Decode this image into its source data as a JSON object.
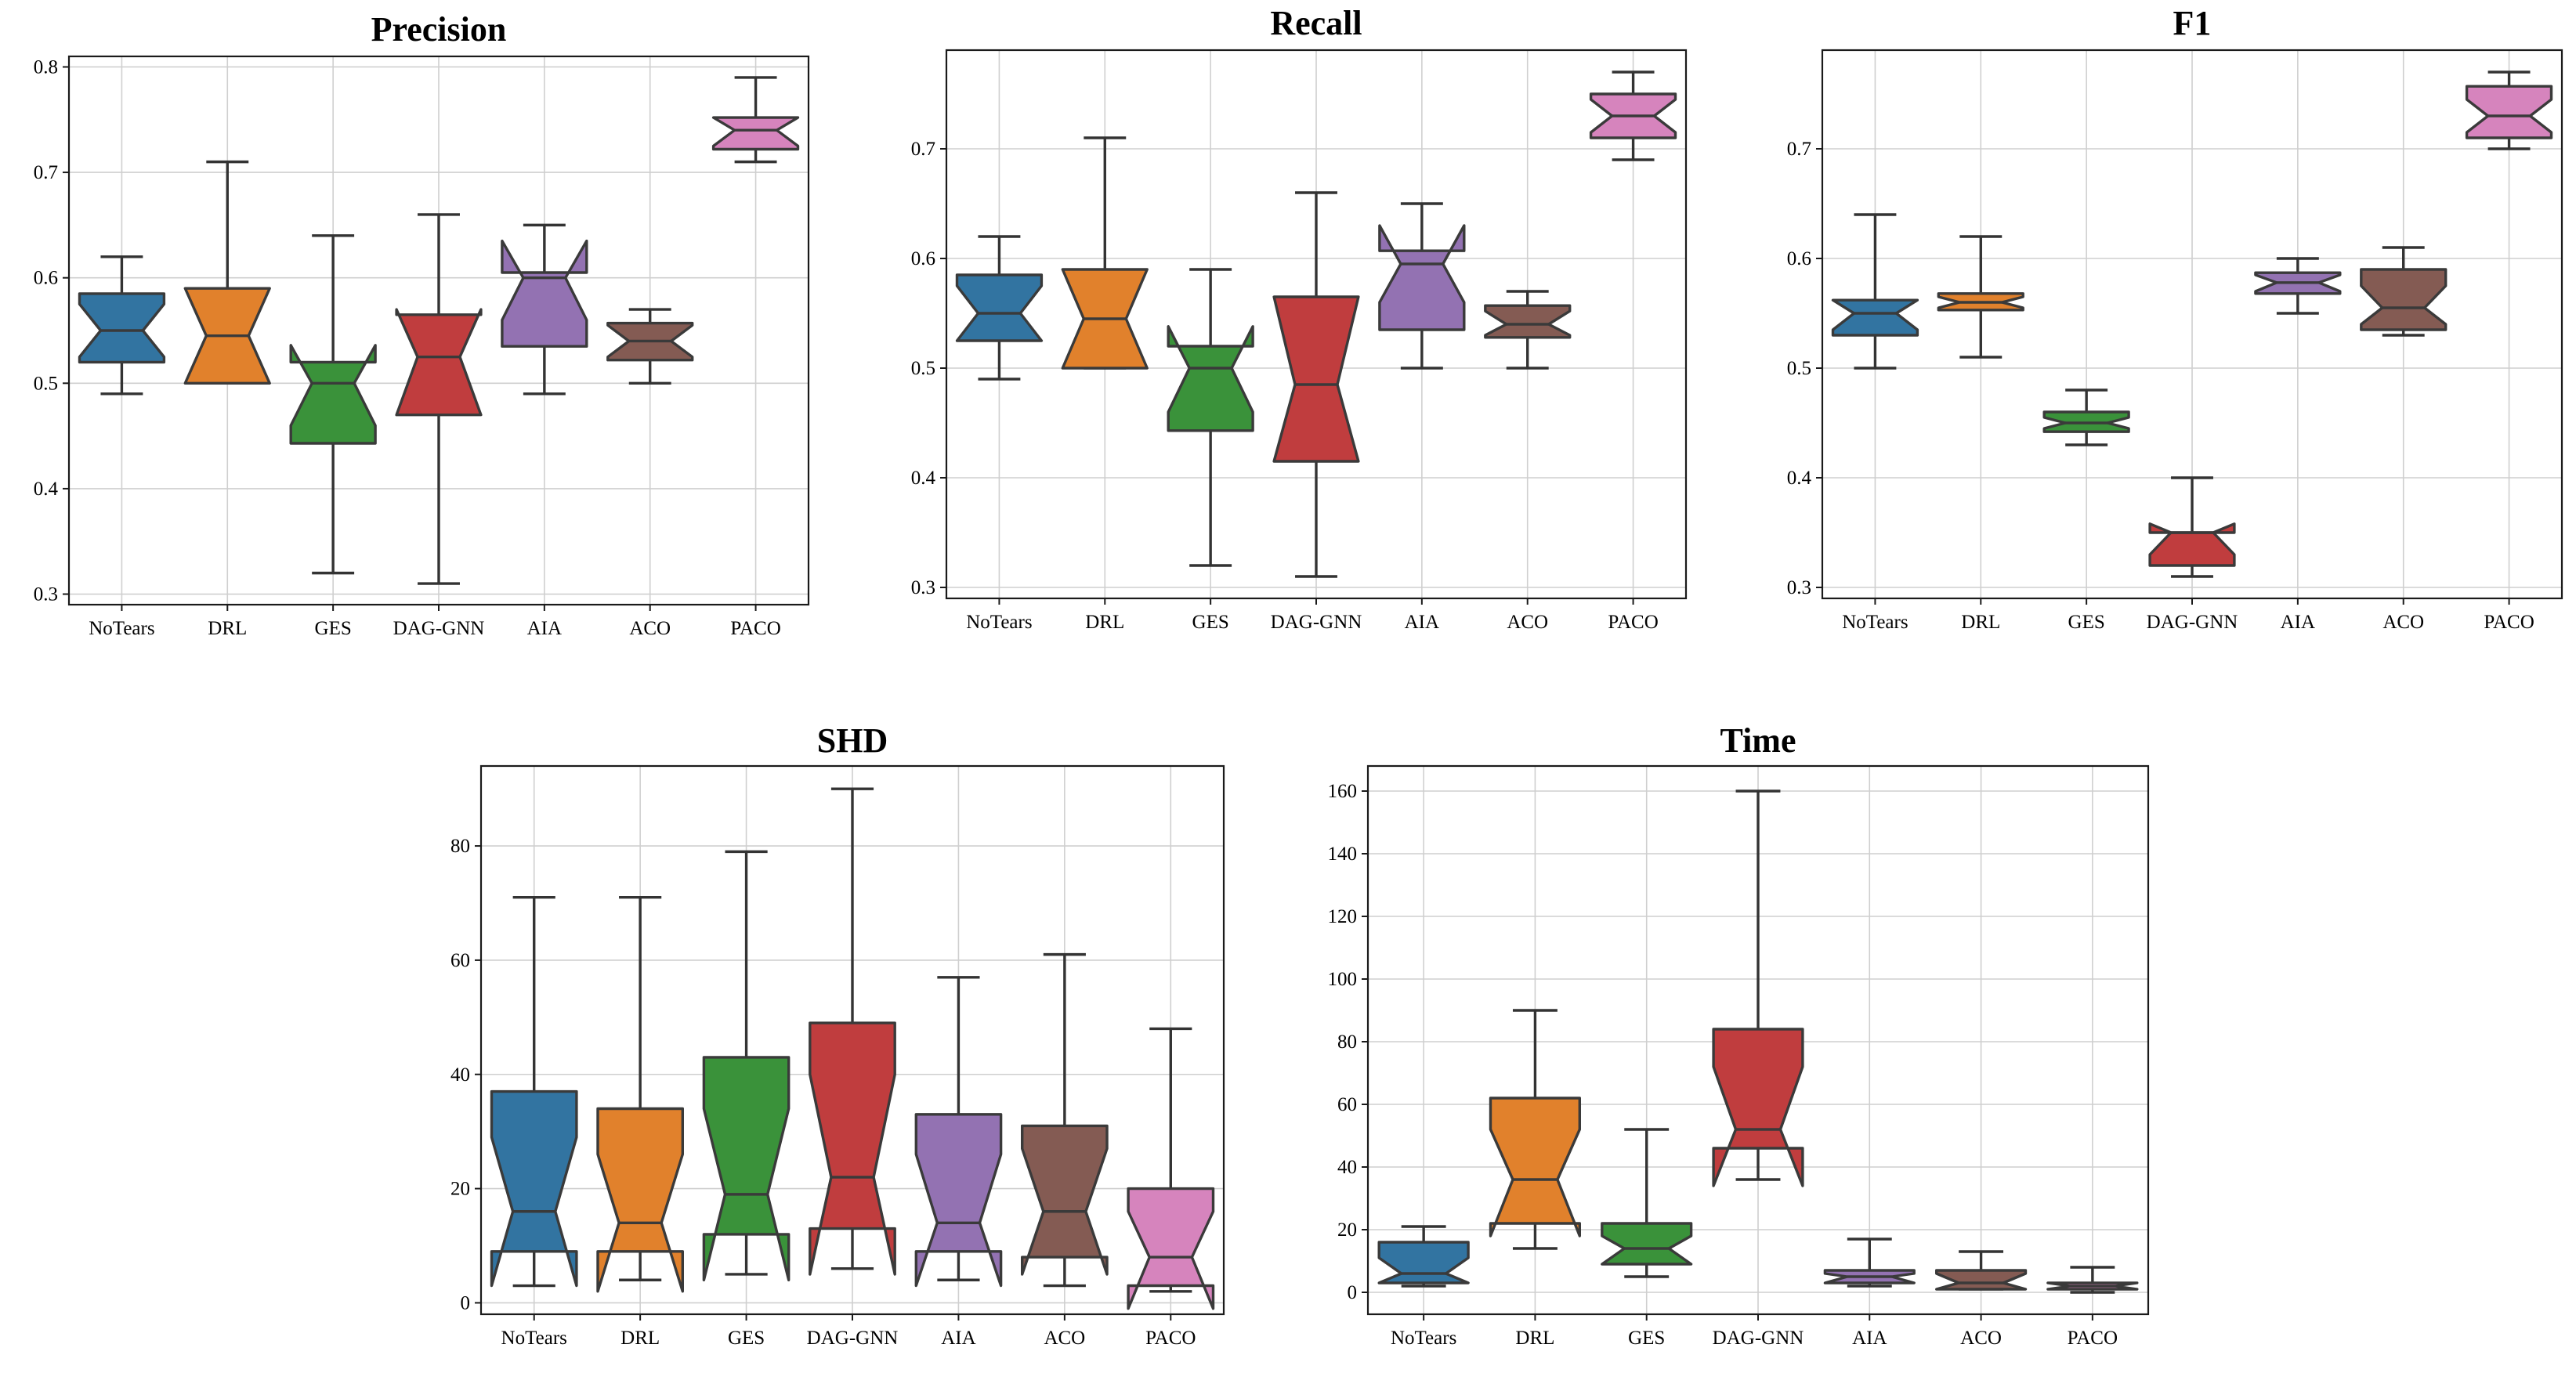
{
  "chart_data": [
    {
      "type": "boxplot",
      "title": "Precision",
      "ylim": [
        0.29,
        0.81
      ],
      "yticks": [
        0.3,
        0.4,
        0.5,
        0.6,
        0.7,
        0.8
      ],
      "ytick_labels": [
        "0.3",
        "0.4",
        "0.5",
        "0.6",
        "0.7",
        "0.8"
      ],
      "categories": [
        "NoTears",
        "DRL",
        "GES",
        "DAG-GNN",
        "AIA",
        "ACO",
        "PACO"
      ],
      "series": [
        {
          "name": "NoTears",
          "whisker_low": 0.49,
          "q1": 0.52,
          "notch_low": 0.525,
          "median": 0.55,
          "notch_high": 0.575,
          "q3": 0.585,
          "whisker_high": 0.62
        },
        {
          "name": "DRL",
          "whisker_low": 0.5,
          "q1": 0.5,
          "notch_low": 0.5,
          "median": 0.545,
          "notch_high": 0.59,
          "q3": 0.59,
          "whisker_high": 0.71
        },
        {
          "name": "GES",
          "whisker_low": 0.32,
          "q1": 0.443,
          "notch_low": 0.46,
          "median": 0.5,
          "notch_high": 0.536,
          "q3": 0.52,
          "whisker_high": 0.64
        },
        {
          "name": "DAG-GNN",
          "whisker_low": 0.31,
          "q1": 0.47,
          "notch_low": 0.47,
          "median": 0.525,
          "notch_high": 0.57,
          "q3": 0.565,
          "whisker_high": 0.66
        },
        {
          "name": "AIA",
          "whisker_low": 0.49,
          "q1": 0.535,
          "notch_low": 0.56,
          "median": 0.6,
          "notch_high": 0.635,
          "q3": 0.605,
          "whisker_high": 0.65
        },
        {
          "name": "ACO",
          "whisker_low": 0.5,
          "q1": 0.522,
          "notch_low": 0.525,
          "median": 0.54,
          "notch_high": 0.555,
          "q3": 0.557,
          "whisker_high": 0.57
        },
        {
          "name": "PACO",
          "whisker_low": 0.71,
          "q1": 0.722,
          "notch_low": 0.725,
          "median": 0.74,
          "notch_high": 0.752,
          "q3": 0.752,
          "whisker_high": 0.79
        }
      ]
    },
    {
      "type": "boxplot",
      "title": "Recall",
      "ylim": [
        0.29,
        0.79
      ],
      "yticks": [
        0.3,
        0.4,
        0.5,
        0.6,
        0.7
      ],
      "ytick_labels": [
        "0.3",
        "0.4",
        "0.5",
        "0.6",
        "0.7"
      ],
      "categories": [
        "NoTears",
        "DRL",
        "GES",
        "DAG-GNN",
        "AIA",
        "ACO",
        "PACO"
      ],
      "series": [
        {
          "name": "NoTears",
          "whisker_low": 0.49,
          "q1": 0.525,
          "notch_low": 0.525,
          "median": 0.55,
          "notch_high": 0.575,
          "q3": 0.585,
          "whisker_high": 0.62
        },
        {
          "name": "DRL",
          "whisker_low": 0.5,
          "q1": 0.5,
          "notch_low": 0.5,
          "median": 0.545,
          "notch_high": 0.59,
          "q3": 0.59,
          "whisker_high": 0.71
        },
        {
          "name": "GES",
          "whisker_low": 0.32,
          "q1": 0.443,
          "notch_low": 0.46,
          "median": 0.5,
          "notch_high": 0.538,
          "q3": 0.52,
          "whisker_high": 0.59
        },
        {
          "name": "DAG-GNN",
          "whisker_low": 0.31,
          "q1": 0.415,
          "notch_low": 0.415,
          "median": 0.485,
          "notch_high": 0.565,
          "q3": 0.565,
          "whisker_high": 0.66
        },
        {
          "name": "AIA",
          "whisker_low": 0.5,
          "q1": 0.535,
          "notch_low": 0.56,
          "median": 0.595,
          "notch_high": 0.63,
          "q3": 0.607,
          "whisker_high": 0.65
        },
        {
          "name": "ACO",
          "whisker_low": 0.5,
          "q1": 0.528,
          "notch_low": 0.53,
          "median": 0.54,
          "notch_high": 0.552,
          "q3": 0.557,
          "whisker_high": 0.57
        },
        {
          "name": "PACO",
          "whisker_low": 0.69,
          "q1": 0.71,
          "notch_low": 0.715,
          "median": 0.73,
          "notch_high": 0.745,
          "q3": 0.75,
          "whisker_high": 0.77
        }
      ]
    },
    {
      "type": "boxplot",
      "title": "F1",
      "ylim": [
        0.29,
        0.79
      ],
      "yticks": [
        0.3,
        0.4,
        0.5,
        0.6,
        0.7
      ],
      "ytick_labels": [
        "0.3",
        "0.4",
        "0.5",
        "0.6",
        "0.7"
      ],
      "categories": [
        "NoTears",
        "DRL",
        "GES",
        "DAG-GNN",
        "AIA",
        "ACO",
        "PACO"
      ],
      "series": [
        {
          "name": "NoTears",
          "whisker_low": 0.5,
          "q1": 0.53,
          "notch_low": 0.535,
          "median": 0.55,
          "notch_high": 0.562,
          "q3": 0.562,
          "whisker_high": 0.64
        },
        {
          "name": "DRL",
          "whisker_low": 0.51,
          "q1": 0.553,
          "notch_low": 0.555,
          "median": 0.56,
          "notch_high": 0.565,
          "q3": 0.568,
          "whisker_high": 0.62
        },
        {
          "name": "GES",
          "whisker_low": 0.43,
          "q1": 0.442,
          "notch_low": 0.445,
          "median": 0.45,
          "notch_high": 0.455,
          "q3": 0.46,
          "whisker_high": 0.48
        },
        {
          "name": "DAG-GNN",
          "whisker_low": 0.31,
          "q1": 0.32,
          "notch_low": 0.33,
          "median": 0.35,
          "notch_high": 0.358,
          "q3": 0.35,
          "whisker_high": 0.4
        },
        {
          "name": "AIA",
          "whisker_low": 0.55,
          "q1": 0.568,
          "notch_low": 0.57,
          "median": 0.578,
          "notch_high": 0.585,
          "q3": 0.587,
          "whisker_high": 0.6
        },
        {
          "name": "ACO",
          "whisker_low": 0.53,
          "q1": 0.535,
          "notch_low": 0.54,
          "median": 0.555,
          "notch_high": 0.575,
          "q3": 0.59,
          "whisker_high": 0.61
        },
        {
          "name": "PACO",
          "whisker_low": 0.7,
          "q1": 0.71,
          "notch_low": 0.715,
          "median": 0.73,
          "notch_high": 0.745,
          "q3": 0.757,
          "whisker_high": 0.77
        }
      ]
    },
    {
      "type": "boxplot",
      "title": "SHD",
      "ylim": [
        -2,
        94
      ],
      "yticks": [
        0,
        20,
        40,
        60,
        80
      ],
      "ytick_labels": [
        "0",
        "20",
        "40",
        "60",
        "80"
      ],
      "categories": [
        "NoTears",
        "DRL",
        "GES",
        "DAG-GNN",
        "AIA",
        "ACO",
        "PACO"
      ],
      "series": [
        {
          "name": "NoTears",
          "whisker_low": 3,
          "q1": 9,
          "notch_low": 3,
          "median": 16,
          "notch_high": 29,
          "q3": 37,
          "whisker_high": 71
        },
        {
          "name": "DRL",
          "whisker_low": 4,
          "q1": 9,
          "notch_low": 2,
          "median": 14,
          "notch_high": 26,
          "q3": 34,
          "whisker_high": 71
        },
        {
          "name": "GES",
          "whisker_low": 5,
          "q1": 12,
          "notch_low": 4,
          "median": 19,
          "notch_high": 34,
          "q3": 43,
          "whisker_high": 79
        },
        {
          "name": "DAG-GNN",
          "whisker_low": 6,
          "q1": 13,
          "notch_low": 5,
          "median": 22,
          "notch_high": 40,
          "q3": 49,
          "whisker_high": 90
        },
        {
          "name": "AIA",
          "whisker_low": 4,
          "q1": 9,
          "notch_low": 3,
          "median": 14,
          "notch_high": 26,
          "q3": 33,
          "whisker_high": 57
        },
        {
          "name": "ACO",
          "whisker_low": 3,
          "q1": 8,
          "notch_low": 5,
          "median": 16,
          "notch_high": 27,
          "q3": 31,
          "whisker_high": 61
        },
        {
          "name": "PACO",
          "whisker_low": 2,
          "q1": 3,
          "notch_low": -1,
          "median": 8,
          "notch_high": 16,
          "q3": 20,
          "whisker_high": 48
        }
      ]
    },
    {
      "type": "boxplot",
      "title": "Time",
      "ylim": [
        -7,
        168
      ],
      "yticks": [
        0,
        20,
        40,
        60,
        80,
        100,
        120,
        140,
        160
      ],
      "ytick_labels": [
        "0",
        "20",
        "40",
        "60",
        "80",
        "100",
        "120",
        "140",
        "160"
      ],
      "categories": [
        "NoTears",
        "DRL",
        "GES",
        "DAG-GNN",
        "AIA",
        "ACO",
        "PACO"
      ],
      "series": [
        {
          "name": "NoTears",
          "whisker_low": 2,
          "q1": 3,
          "notch_low": 3,
          "median": 6,
          "notch_high": 11,
          "q3": 16,
          "whisker_high": 21
        },
        {
          "name": "DRL",
          "whisker_low": 14,
          "q1": 22,
          "notch_low": 18,
          "median": 36,
          "notch_high": 52,
          "q3": 62,
          "whisker_high": 90
        },
        {
          "name": "GES",
          "whisker_low": 5,
          "q1": 9,
          "notch_low": 9,
          "median": 14,
          "notch_high": 18,
          "q3": 22,
          "whisker_high": 52
        },
        {
          "name": "DAG-GNN",
          "whisker_low": 36,
          "q1": 46,
          "notch_low": 34,
          "median": 52,
          "notch_high": 72,
          "q3": 84,
          "whisker_high": 160
        },
        {
          "name": "AIA",
          "whisker_low": 2,
          "q1": 3,
          "notch_low": 3,
          "median": 5,
          "notch_high": 6,
          "q3": 7,
          "whisker_high": 17
        },
        {
          "name": "ACO",
          "whisker_low": 1,
          "q1": 1,
          "notch_low": 1,
          "median": 3,
          "notch_high": 6,
          "q3": 7,
          "whisker_high": 13
        },
        {
          "name": "PACO",
          "whisker_low": 0,
          "q1": 1,
          "notch_low": 1,
          "median": 2,
          "notch_high": 3,
          "q3": 3,
          "whisker_high": 8
        }
      ]
    }
  ],
  "colors": {
    "NoTears": "#3274a1",
    "DRL": "#e1812c",
    "GES": "#3a923a",
    "DAG-GNN": "#c03d3e",
    "AIA": "#9372b2",
    "ACO": "#845b53",
    "PACO": "#d684bd"
  }
}
